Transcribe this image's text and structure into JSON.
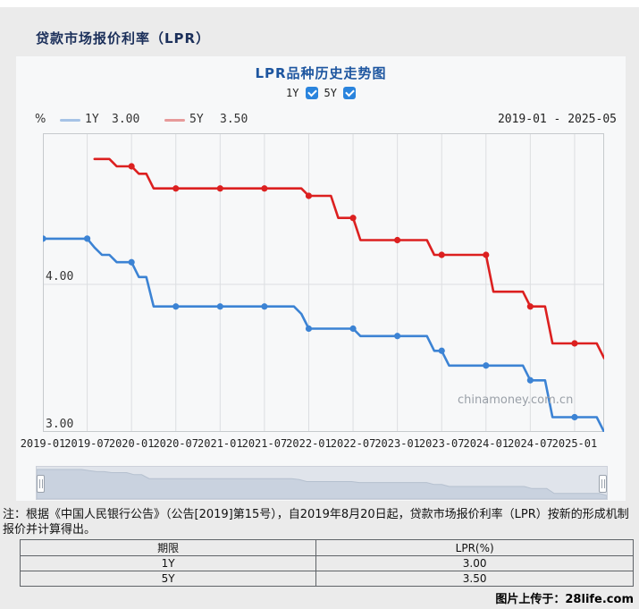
{
  "page": {
    "title": "贷款市场报价利率（LPR）",
    "footer": "图片上传于：28life.com"
  },
  "panel": {
    "chart_title": "LPR品种历史走势图",
    "checkboxes": [
      {
        "label": "1Y",
        "checked": true
      },
      {
        "label": "5Y",
        "checked": true
      }
    ],
    "unit_label": "%",
    "legend": [
      {
        "name": "1Y",
        "value": "3.00",
        "swatch_color": "#a6c3e6"
      },
      {
        "name": "5Y",
        "value": "3.50",
        "swatch_color": "#e79a9a"
      }
    ],
    "date_range": "2019-01 - 2025-05",
    "watermark": "chinamoney.com.cn"
  },
  "chart_data": {
    "type": "line",
    "title": "LPR品种历史走势图",
    "x_start": "2019-01",
    "x_end": "2025-05",
    "x_tick_labels": [
      "2019-01",
      "2019-07",
      "2020-01",
      "2020-07",
      "2021-01",
      "2021-07",
      "2022-01",
      "2022-07",
      "2023-01",
      "2023-07",
      "2024-01",
      "2024-07",
      "2025-01"
    ],
    "months_per_tick": 6,
    "ylim": [
      3.0,
      5.02
    ],
    "y_gridline_values": [
      3.0,
      4.0
    ],
    "y_tick_labels": [
      "3.00",
      "4.00"
    ],
    "marker_every": 6,
    "grid": true,
    "legend_position": "top-left",
    "series": [
      {
        "name": "1Y",
        "color": "#3c83d4",
        "values": [
          4.31,
          4.31,
          4.31,
          4.31,
          4.31,
          4.31,
          4.31,
          4.25,
          4.2,
          4.2,
          4.15,
          4.15,
          4.15,
          4.05,
          4.05,
          3.85,
          3.85,
          3.85,
          3.85,
          3.85,
          3.85,
          3.85,
          3.85,
          3.85,
          3.85,
          3.85,
          3.85,
          3.85,
          3.85,
          3.85,
          3.85,
          3.85,
          3.85,
          3.85,
          3.85,
          3.8,
          3.7,
          3.7,
          3.7,
          3.7,
          3.7,
          3.7,
          3.7,
          3.65,
          3.65,
          3.65,
          3.65,
          3.65,
          3.65,
          3.65,
          3.65,
          3.65,
          3.65,
          3.55,
          3.55,
          3.45,
          3.45,
          3.45,
          3.45,
          3.45,
          3.45,
          3.45,
          3.45,
          3.45,
          3.45,
          3.45,
          3.35,
          3.35,
          3.35,
          3.1,
          3.1,
          3.1,
          3.1,
          3.1,
          3.1,
          3.1,
          3.0
        ]
      },
      {
        "name": "5Y",
        "color": "#dc2020",
        "values": [
          null,
          null,
          null,
          null,
          null,
          null,
          null,
          4.85,
          4.85,
          4.85,
          4.8,
          4.8,
          4.8,
          4.75,
          4.75,
          4.65,
          4.65,
          4.65,
          4.65,
          4.65,
          4.65,
          4.65,
          4.65,
          4.65,
          4.65,
          4.65,
          4.65,
          4.65,
          4.65,
          4.65,
          4.65,
          4.65,
          4.65,
          4.65,
          4.65,
          4.65,
          4.6,
          4.6,
          4.6,
          4.6,
          4.45,
          4.45,
          4.45,
          4.3,
          4.3,
          4.3,
          4.3,
          4.3,
          4.3,
          4.3,
          4.3,
          4.3,
          4.3,
          4.2,
          4.2,
          4.2,
          4.2,
          4.2,
          4.2,
          4.2,
          4.2,
          3.95,
          3.95,
          3.95,
          3.95,
          3.95,
          3.85,
          3.85,
          3.85,
          3.6,
          3.6,
          3.6,
          3.6,
          3.6,
          3.6,
          3.6,
          3.5
        ]
      }
    ]
  },
  "navigator": {
    "series_shown": "1Y"
  },
  "note": {
    "text": "注：根据《中国人民银行公告》（公告[2019]第15号），自2019年8月20日起，贷款市场报价利率（LPR）按新的形成机制报价并计算得出。"
  },
  "table": {
    "headers": [
      "期限",
      "LPR(%)"
    ],
    "rows": [
      [
        "1Y",
        "3.00"
      ],
      [
        "5Y",
        "3.50"
      ]
    ]
  }
}
